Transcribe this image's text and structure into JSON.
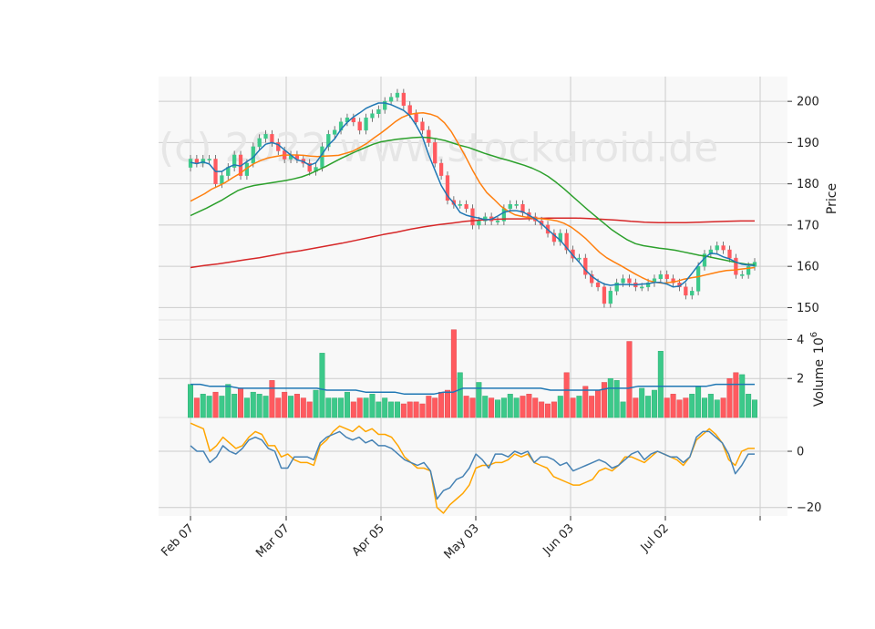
{
  "chart_data": {
    "type": "candlestick",
    "watermark": "(c) 2022 www.stockdroid.de",
    "colors": {
      "up": "#3cc98a",
      "down": "#ff5a5f",
      "ma_fast": "#1f77b4",
      "ma_mid": "#ff7f0e",
      "ma_slow": "#2ca02c",
      "ma_long": "#d62728",
      "vol_ma": "#1f77b4",
      "ind_a": "#4682b4",
      "ind_b": "#ffa500",
      "grid": "#cccccc",
      "panel_bg": "#f8f8f8"
    },
    "x_ticks": [
      "Feb 07",
      "Mar 07",
      "Apr 05",
      "May 03",
      "Jun 03",
      "Jul 02"
    ],
    "price_panel": {
      "ylabel": "Price",
      "ylim": [
        147,
        206
      ],
      "yticks": [
        150,
        160,
        170,
        180,
        190,
        200
      ]
    },
    "volume_panel": {
      "ylabel": "Volume",
      "ylabel_multiplier": "10",
      "ylabel_exponent": "6",
      "ylim": [
        0,
        5.0
      ],
      "yticks": [
        2,
        4
      ]
    },
    "indicator_panel": {
      "ylim": [
        -23,
        12
      ],
      "yticks": [
        0,
        -20
      ],
      "ytick_labels": [
        "0",
        "−20"
      ]
    },
    "close": [
      186,
      185,
      186,
      186,
      180,
      182,
      184,
      187,
      182,
      185,
      189,
      191,
      192,
      190,
      188,
      186,
      187,
      186,
      185,
      183,
      184,
      189,
      192,
      193,
      195,
      196,
      195,
      193,
      196,
      197,
      198,
      200,
      201,
      202,
      199,
      197,
      195,
      193,
      190,
      185,
      182,
      176,
      175,
      175,
      174,
      170,
      171,
      172,
      171,
      171,
      174,
      175,
      175,
      173,
      172,
      171,
      170,
      168,
      166,
      168,
      164,
      162,
      162,
      158,
      156,
      155,
      151,
      154,
      156,
      157,
      156,
      155,
      155,
      156,
      157,
      158,
      157,
      156,
      155,
      153,
      154,
      160,
      163,
      164,
      165,
      164,
      162,
      158,
      158,
      160,
      161
    ],
    "volume": [
      1.7,
      1.0,
      1.2,
      1.1,
      1.3,
      1.1,
      1.7,
      1.2,
      1.5,
      1.0,
      1.3,
      1.2,
      1.1,
      1.9,
      1.0,
      1.3,
      1.1,
      1.2,
      1.0,
      0.8,
      1.4,
      3.3,
      1.0,
      1.0,
      1.0,
      1.3,
      0.8,
      1.0,
      1.0,
      1.2,
      0.8,
      1.0,
      0.8,
      0.8,
      0.7,
      0.8,
      0.8,
      0.7,
      1.1,
      1.0,
      1.3,
      1.4,
      4.5,
      2.3,
      1.1,
      1.0,
      1.8,
      1.1,
      1.0,
      0.9,
      1.0,
      1.2,
      1.0,
      1.1,
      1.2,
      1.0,
      0.8,
      0.7,
      0.8,
      1.1,
      2.3,
      1.0,
      1.1,
      1.6,
      1.1,
      1.4,
      1.8,
      2.0,
      1.9,
      0.8,
      3.9,
      1.0,
      1.5,
      1.1,
      1.4,
      3.4,
      1.0,
      1.2,
      0.9,
      1.0,
      1.2,
      1.6,
      1.0,
      1.2,
      0.9,
      1.0,
      2.0,
      2.3,
      2.2,
      1.2,
      0.9
    ],
    "ma_fast": [
      185.2,
      184.9,
      185.3,
      184.8,
      183.0,
      183.0,
      184.0,
      184.6,
      184.3,
      185.4,
      186.4,
      188.2,
      189.6,
      190.0,
      189.5,
      188.2,
      187.0,
      185.8,
      185.4,
      184.5,
      185.1,
      187.2,
      189.4,
      190.9,
      193.2,
      194.9,
      196.2,
      197.2,
      198.3,
      199.0,
      199.6,
      199.6,
      199.2,
      198.5,
      197.8,
      196.5,
      194.2,
      191.4,
      187.0,
      183.3,
      179.6,
      177.1,
      175.3,
      173.1,
      172.4,
      172.0,
      171.7,
      171.3,
      171.4,
      172.2,
      173.1,
      173.5,
      173.5,
      173.2,
      172.4,
      171.5,
      170.3,
      168.9,
      167.6,
      166.3,
      164.5,
      162.7,
      161.0,
      159.1,
      157.6,
      156.5,
      155.7,
      155.4,
      155.6,
      155.6,
      155.6,
      155.5,
      155.7,
      155.8,
      156.1,
      156.1,
      155.7,
      155.0,
      155.2,
      156.4,
      158.3,
      160.3,
      162.0,
      163.2,
      163.0,
      162.3,
      161.8,
      161.0,
      160.5,
      160.3,
      160.2
    ],
    "ma_mid": [
      175.8,
      176.7,
      177.6,
      178.7,
      179.5,
      180.4,
      181.5,
      182.5,
      183.8,
      184.9,
      185.7,
      186.3,
      186.6,
      186.9,
      187.0,
      187.0,
      186.9,
      186.7,
      186.6,
      186.7,
      186.8,
      186.9,
      187.4,
      187.9,
      188.8,
      189.8,
      191.1,
      192.3,
      193.6,
      195.0,
      196.1,
      196.8,
      197.1,
      197.2,
      196.9,
      196.3,
      194.8,
      192.6,
      189.7,
      186.6,
      183.3,
      180.3,
      177.9,
      176.3,
      174.6,
      173.4,
      172.5,
      172.1,
      171.8,
      171.7,
      171.5,
      171.3,
      171.0,
      170.4,
      169.5,
      168.2,
      166.8,
      165.1,
      163.4,
      162.1,
      161.1,
      160.2,
      159.2,
      158.2,
      157.3,
      156.5,
      156.1,
      155.9,
      156.1,
      156.4,
      156.9,
      157.2,
      157.5,
      157.9,
      158.3,
      158.7,
      159.0,
      159.1,
      159.3,
      159.5,
      159.7
    ],
    "ma_slow": [
      172.3,
      173.2,
      174.1,
      175.1,
      176.1,
      177.3,
      178.4,
      179.1,
      179.6,
      179.9,
      180.2,
      180.5,
      180.8,
      181.2,
      181.7,
      182.4,
      183.3,
      184.2,
      185.2,
      186.2,
      187.1,
      188.0,
      188.8,
      189.6,
      190.2,
      190.5,
      190.8,
      191.0,
      191.2,
      191.3,
      191.2,
      190.9,
      190.5,
      189.9,
      189.3,
      188.8,
      188.1,
      187.4,
      186.8,
      186.2,
      185.7,
      185.1,
      184.5,
      183.8,
      182.9,
      181.8,
      180.4,
      178.8,
      177.1,
      175.4,
      173.7,
      172.1,
      170.5,
      168.9,
      167.6,
      166.4,
      165.5,
      165.0,
      164.7,
      164.4,
      164.2,
      163.9,
      163.5,
      163.1,
      162.7,
      162.4,
      162.0,
      161.6,
      161.2,
      160.8,
      160.5,
      160.4
    ],
    "ma_long": [
      159.7,
      160.2,
      160.6,
      161.1,
      161.6,
      162.1,
      162.7,
      163.3,
      163.8,
      164.4,
      165.0,
      165.6,
      166.3,
      167.0,
      167.7,
      168.3,
      169.0,
      169.6,
      170.1,
      170.5,
      170.9,
      171.2,
      171.4,
      171.5,
      171.5,
      171.6,
      171.7,
      171.7,
      171.7,
      171.6,
      171.4,
      171.2,
      170.9,
      170.7,
      170.6,
      170.6,
      170.6,
      170.7,
      170.8,
      170.9,
      171.0,
      171.0
    ],
    "vol_ma": [
      1.7,
      1.7,
      1.6,
      1.6,
      1.6,
      1.5,
      1.5,
      1.5,
      1.5,
      1.5,
      1.5,
      1.5,
      1.5,
      1.5,
      1.4,
      1.4,
      1.4,
      1.4,
      1.3,
      1.3,
      1.3,
      1.3,
      1.2,
      1.2,
      1.2,
      1.2,
      1.3,
      1.3,
      1.5,
      1.5,
      1.5,
      1.5,
      1.5,
      1.5,
      1.5,
      1.5,
      1.5,
      1.4,
      1.4,
      1.4,
      1.4,
      1.4,
      1.4,
      1.5,
      1.5,
      1.5,
      1.6,
      1.6,
      1.6,
      1.6,
      1.6,
      1.6,
      1.6,
      1.6,
      1.7,
      1.7,
      1.7,
      1.7,
      1.7
    ],
    "ind_a": [
      2,
      0,
      0,
      -4,
      -2,
      2,
      0,
      -1,
      1,
      4,
      5,
      4,
      1,
      0,
      -6,
      -6,
      -2,
      -2,
      -2,
      -3,
      3,
      5,
      6,
      7,
      5,
      4,
      5,
      3,
      4,
      2,
      2,
      1,
      -1,
      -3,
      -4,
      -5,
      -4,
      -7,
      -17,
      -14,
      -13,
      -10,
      -9,
      -6,
      -1,
      -3,
      -6,
      -1,
      -1,
      -2,
      0,
      -1,
      0,
      -4,
      -2,
      -2,
      -3,
      -5,
      -4,
      -7,
      -6,
      -5,
      -4,
      -3,
      -4,
      -6,
      -5,
      -3,
      -1,
      0,
      -3,
      -1,
      0,
      -1,
      -2,
      -2,
      -4,
      -2,
      5,
      7,
      7,
      5,
      3,
      -1,
      -8,
      -5,
      -1,
      -1
    ],
    "ind_b": [
      10,
      9,
      8,
      0,
      2,
      5,
      3,
      1,
      2,
      5,
      7,
      6,
      2,
      2,
      -2,
      -1,
      -3,
      -4,
      -4,
      -5,
      2,
      4,
      7,
      9,
      8,
      7,
      9,
      7,
      8,
      6,
      6,
      5,
      2,
      -2,
      -4,
      -6,
      -6,
      -7,
      -20,
      -22,
      -19,
      -17,
      -15,
      -12,
      -6,
      -5,
      -5,
      -4,
      -4,
      -3,
      -1,
      -2,
      -1,
      -4,
      -5,
      -6,
      -9,
      -10,
      -11,
      -12,
      -12,
      -11,
      -10,
      -7,
      -6,
      -7,
      -5,
      -2,
      -2,
      -3,
      -4,
      -2,
      0,
      -1,
      -2,
      -3,
      -5,
      -2,
      4,
      6,
      8,
      6,
      3,
      -3,
      -5,
      0,
      1,
      1
    ]
  }
}
